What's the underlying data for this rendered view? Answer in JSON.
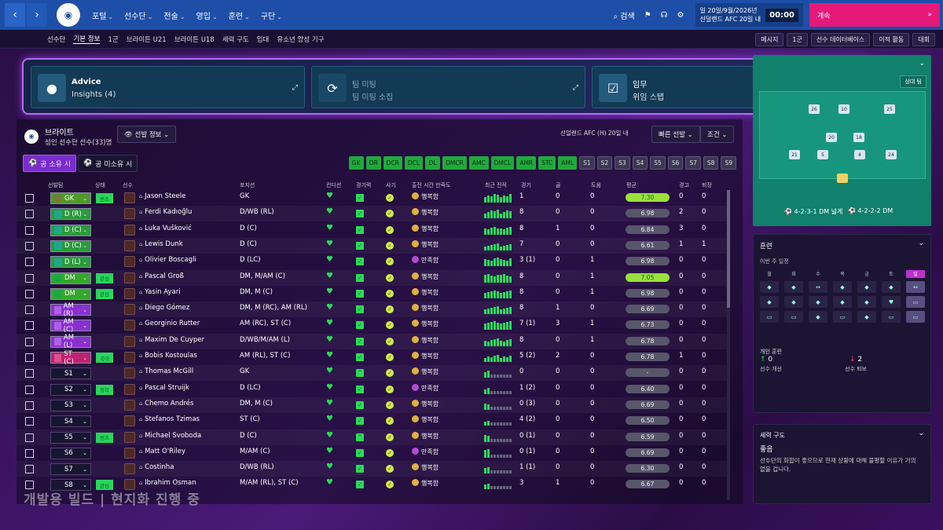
{
  "topbar": {
    "back": "‹",
    "forward": "›",
    "menu": [
      "포털",
      "선수단",
      "전술",
      "영입",
      "훈련",
      "구단"
    ],
    "search": "검색",
    "date_line1": "일 20일/9월/2026년",
    "date_line2": "선덜랜드 AFC 20일 내",
    "clock": "00:00",
    "continue": "계속"
  },
  "subbar": {
    "items": [
      "선수단",
      "기본 정보",
      "1군",
      "브라이튼 U21",
      "브라이튼 U18",
      "세력 구도",
      "임대",
      "유소년 양성 기구"
    ],
    "right": [
      "메시지",
      "1군",
      "선수 데이터베이스",
      "이적 활동",
      "대회"
    ]
  },
  "cards": [
    {
      "title": "Advice",
      "sub": "Insights (4)"
    },
    {
      "title": "팀 미팅",
      "sub": "팀 미팅 소집"
    },
    {
      "title": "임무",
      "sub": "위임  스탭"
    }
  ],
  "team": {
    "name": "브라이트",
    "sub": "성인 선수단 선수(33)명"
  },
  "controls": {
    "select_info": "선발 정보",
    "next_match": "선덜랜드 AFC (H) 20일 내",
    "quick_select": "빠른 선발",
    "condition": "조건",
    "toggle_on": "공 소유 시",
    "toggle_off": "공 미소유 시"
  },
  "position_filters": [
    "GK",
    "DR",
    "DCR",
    "DCL",
    "DL",
    "DMCR",
    "AMC",
    "DMCL",
    "AMR",
    "STC",
    "AML",
    "S1",
    "S2",
    "S3",
    "S4",
    "S5",
    "S6",
    "S7",
    "S8",
    "S9"
  ],
  "columns": [
    "선발팀",
    "상태",
    "선수",
    "포지션",
    "컨디션",
    "경기력",
    "사기",
    "출전 시간 만족도",
    "최근 전적",
    "경기",
    "골",
    "도움",
    "평균",
    "경고",
    "퇴장"
  ],
  "players": [
    {
      "sel": "GK",
      "type": "gk",
      "tag": "벤츠",
      "name": "Jason Steele",
      "pos": "GK",
      "fit": "✓",
      "sat": "행복함",
      "apps": "1",
      "gls": "0",
      "ast": "0",
      "rt": "7.30",
      "hi": true,
      "yc": "0",
      "rc": "0"
    },
    {
      "sel": "D (R)",
      "type": "d",
      "tag": "",
      "name": "Ferdi Kadıoğlu",
      "pos": "D/WB (RL)",
      "fit": "✓",
      "sat": "행복함",
      "apps": "8",
      "gls": "0",
      "ast": "0",
      "rt": "6.98",
      "hi": false,
      "yc": "2",
      "rc": "0"
    },
    {
      "sel": "D (C)",
      "type": "d",
      "tag": "",
      "name": "Luka Vušković",
      "pos": "D (C)",
      "fit": "✓",
      "sat": "행복함",
      "apps": "8",
      "gls": "1",
      "ast": "0",
      "rt": "6.84",
      "hi": false,
      "yc": "3",
      "rc": "0"
    },
    {
      "sel": "D (C)",
      "type": "d",
      "tag": "",
      "name": "Lewis Dunk",
      "pos": "D (C)",
      "fit": "✓",
      "sat": "행복함",
      "apps": "7",
      "gls": "0",
      "ast": "0",
      "rt": "6.61",
      "hi": false,
      "yc": "1",
      "rc": "1"
    },
    {
      "sel": "D (L)",
      "type": "d",
      "tag": "",
      "name": "Olivier Boscagli",
      "pos": "D (LC)",
      "fit": "✓",
      "sat": "만족함",
      "mj": true,
      "apps": "3 (1)",
      "gls": "0",
      "ast": "1",
      "rt": "6.98",
      "hi": false,
      "yc": "0",
      "rc": "0"
    },
    {
      "sel": "DM",
      "type": "dm",
      "tag": "관심",
      "name": "Pascal Groß",
      "pos": "DM, M/AM (C)",
      "fit": "✓",
      "sat": "행복함",
      "apps": "8",
      "gls": "0",
      "ast": "1",
      "rt": "7.05",
      "hi": true,
      "yc": "0",
      "rc": "0"
    },
    {
      "sel": "DM",
      "type": "dm",
      "tag": "관심",
      "name": "Yasin Ayari",
      "pos": "DM, M (C)",
      "fit": "✓",
      "sat": "행복함",
      "apps": "8",
      "gls": "0",
      "ast": "1",
      "rt": "6.98",
      "hi": false,
      "yc": "0",
      "rc": "0"
    },
    {
      "sel": "AM (R)",
      "type": "am",
      "tag": "",
      "name": "Diego Gómez",
      "pos": "DM, M (RC), AM (RL)",
      "fit": "✓",
      "sat": "행복함",
      "apps": "8",
      "gls": "1",
      "ast": "0",
      "rt": "6.69",
      "hi": false,
      "yc": "0",
      "rc": "0"
    },
    {
      "sel": "AM (C)",
      "type": "am",
      "tag": "",
      "name": "Georginio Rutter",
      "pos": "AM (RC), ST (C)",
      "fit": "✓",
      "sat": "행복함",
      "apps": "7 (1)",
      "gls": "3",
      "ast": "1",
      "rt": "6.73",
      "hi": false,
      "yc": "0",
      "rc": "0"
    },
    {
      "sel": "AM (L)",
      "type": "am",
      "tag": "",
      "name": "Maxim De Cuyper",
      "pos": "D/WB/M/AM (L)",
      "fit": "✓",
      "sat": "행복함",
      "apps": "8",
      "gls": "0",
      "ast": "1",
      "rt": "6.78",
      "hi": false,
      "yc": "0",
      "rc": "0"
    },
    {
      "sel": "ST (C)",
      "type": "st",
      "tag": "국대",
      "name": "Bobis Kostoulas",
      "pos": "AM (RL), ST (C)",
      "fit": "✓",
      "sat": "행복함",
      "apps": "5 (2)",
      "gls": "2",
      "ast": "0",
      "rt": "6.78",
      "hi": false,
      "yc": "1",
      "rc": "0"
    },
    {
      "sel": "S1",
      "type": "sub",
      "tag": "",
      "name": "Thomas McGill",
      "pos": "GK",
      "fit": "^",
      "sat": "행복함",
      "apps": "0",
      "gls": "0",
      "ast": "0",
      "rt": "-",
      "hi": false,
      "yc": "0",
      "rc": "0"
    },
    {
      "sel": "S2",
      "type": "sub",
      "tag": "정착",
      "name": "Pascal Struijk",
      "pos": "D (LC)",
      "fit": "✓",
      "sat": "만족함",
      "mj": true,
      "apps": "1 (2)",
      "gls": "0",
      "ast": "0",
      "rt": "6.40",
      "hi": false,
      "yc": "0",
      "rc": "0"
    },
    {
      "sel": "S3",
      "type": "sub",
      "tag": "",
      "name": "Chemo Andrés",
      "pos": "DM, M (C)",
      "fit": "✓",
      "sat": "행복함",
      "apps": "0 (3)",
      "gls": "0",
      "ast": "0",
      "rt": "6.69",
      "hi": false,
      "yc": "0",
      "rc": "0"
    },
    {
      "sel": "S4",
      "type": "sub",
      "tag": "",
      "name": "Stefanos Tzimas",
      "pos": "ST (C)",
      "fit": "✓",
      "sat": "행복함",
      "apps": "4 (2)",
      "gls": "0",
      "ast": "0",
      "rt": "6.50",
      "hi": false,
      "yc": "0",
      "rc": "0"
    },
    {
      "sel": "S5",
      "type": "sub",
      "tag": "벤츠",
      "name": "Michael Svoboda",
      "pos": "D (C)",
      "fit": "^",
      "sat": "행복함",
      "apps": "0 (1)",
      "gls": "0",
      "ast": "0",
      "rt": "6.59",
      "hi": false,
      "yc": "0",
      "rc": "0"
    },
    {
      "sel": "S6",
      "type": "sub",
      "tag": "",
      "name": "Matt O'Riley",
      "pos": "M/AM (C)",
      "fit": "✓",
      "sat": "만족함",
      "mj": true,
      "apps": "0 (1)",
      "gls": "0",
      "ast": "0",
      "rt": "6.69",
      "hi": false,
      "yc": "0",
      "rc": "0"
    },
    {
      "sel": "S7",
      "type": "sub",
      "tag": "",
      "name": "Costinha",
      "pos": "D/WB (RL)",
      "fit": "✓",
      "sat": "행복함",
      "apps": "1 (1)",
      "gls": "0",
      "ast": "0",
      "rt": "6.30",
      "hi": false,
      "yc": "0",
      "rc": "0"
    },
    {
      "sel": "S8",
      "type": "sub",
      "tag": "관심",
      "name": "Ibrahim Osman",
      "pos": "M/AM (RL), ST (C)",
      "fit": "✓",
      "sat": "행복함",
      "apps": "3",
      "gls": "1",
      "ast": "0",
      "rt": "6.67",
      "hi": false,
      "yc": "0",
      "rc": "0"
    }
  ],
  "tactics": {
    "opponent": "상대 팀",
    "f1": "4-2-3-1 DM 넓게",
    "f2": "4-2-2-2 DM",
    "numbers": [
      "26",
      "10",
      "25",
      "20",
      "18",
      "21",
      "5",
      "4",
      "24"
    ]
  },
  "training": {
    "title": "훈련",
    "sub": "이번 주 일정",
    "days": [
      "월",
      "화",
      "수",
      "목",
      "금",
      "토",
      "일"
    ],
    "indiv": "개인 훈련",
    "up_val": "0",
    "up_label": "선수 개선",
    "down_val": "2",
    "down_label": "선수 퇴보"
  },
  "power": {
    "title": "세력 구도",
    "status": "좋음",
    "desc": "선수단의 화합이 좋으므로 현재 상황에 대해 불평할 이유가 거의 없을 겁니다."
  },
  "watermark": "개발용 빌드 | 현지화 진행 중"
}
